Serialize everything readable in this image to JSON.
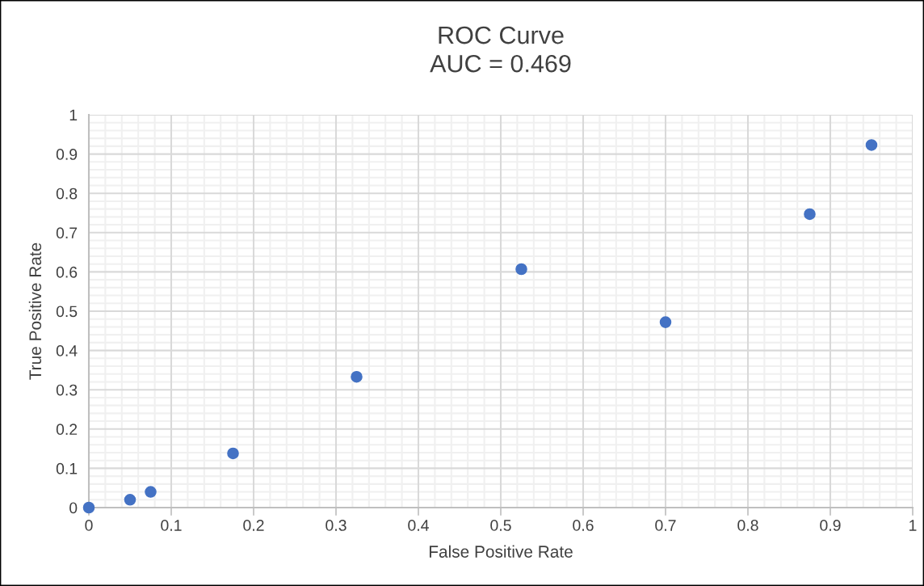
{
  "chart_data": {
    "type": "scatter",
    "title": "ROC Curve\nAUC = 0.469",
    "xlabel": "False Positive Rate",
    "ylabel": "True Positive Rate",
    "x": [
      0,
      0.05,
      0.075,
      0.175,
      0.325,
      0.525,
      0.7,
      0.875,
      0.95
    ],
    "series": [
      {
        "color": "#4472c4",
        "values": [
          0,
          0.02,
          0.04,
          0.138,
          0.333,
          0.607,
          0.472,
          0.747,
          0.923
        ]
      }
    ],
    "xlim": [
      0,
      1
    ],
    "ylim": [
      0,
      1
    ],
    "xticks": [
      0,
      0.1,
      0.2,
      0.3,
      0.4,
      0.5,
      0.6,
      0.7,
      0.8,
      0.9,
      1
    ],
    "yticks": [
      0,
      0.1,
      0.2,
      0.3,
      0.4,
      0.5,
      0.6,
      0.7,
      0.8,
      0.9,
      1
    ],
    "grid": true,
    "marker": "circle"
  }
}
